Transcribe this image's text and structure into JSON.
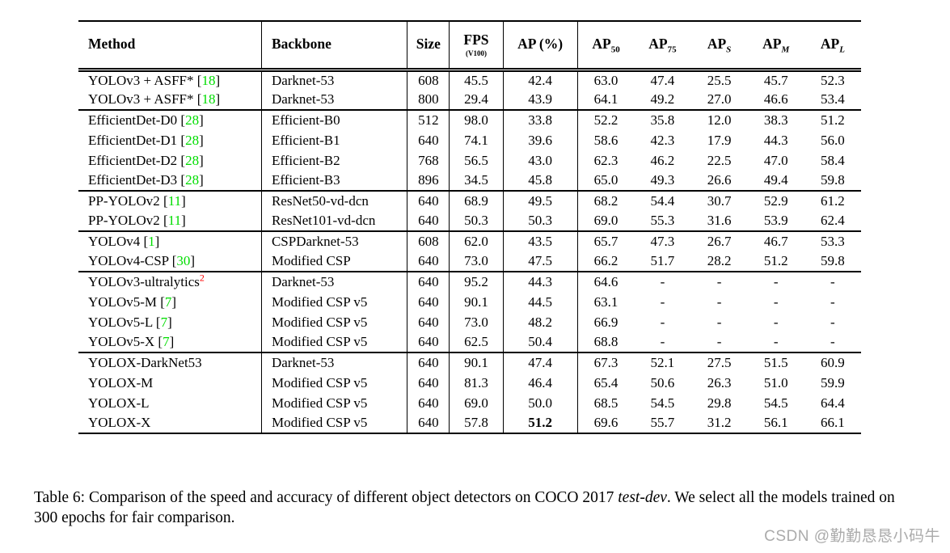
{
  "colors": {
    "citation_green": "#00dd00",
    "footnote_red": "#ff0000",
    "watermark_gray": "#ababab",
    "rule_black": "#000000",
    "background": "#ffffff"
  },
  "table": {
    "columns": [
      {
        "key": "method",
        "label": "Method",
        "align": "left"
      },
      {
        "key": "backbone",
        "label": "Backbone",
        "align": "left"
      },
      {
        "key": "size",
        "label": "Size"
      },
      {
        "key": "fps",
        "label": "FPS",
        "sub_note": "(V100)"
      },
      {
        "key": "ap",
        "label": "AP (%)"
      },
      {
        "key": "ap50",
        "label": "AP",
        "sub": "50"
      },
      {
        "key": "ap75",
        "label": "AP",
        "sub": "75"
      },
      {
        "key": "aps",
        "label": "AP",
        "sub": "S",
        "sub_italic": true
      },
      {
        "key": "apm",
        "label": "AP",
        "sub": "M",
        "sub_italic": true
      },
      {
        "key": "apl",
        "label": "AP",
        "sub": "L",
        "sub_italic": true
      }
    ],
    "groups": [
      {
        "rows": [
          {
            "method": "YOLOv3 + ASFF*",
            "cite": "18",
            "backbone": "Darknet-53",
            "size": "608",
            "fps": "45.5",
            "ap": "42.4",
            "ap50": "63.0",
            "ap75": "47.4",
            "aps": "25.5",
            "apm": "45.7",
            "apl": "52.3"
          },
          {
            "method": "YOLOv3 + ASFF*",
            "cite": "18",
            "backbone": "Darknet-53",
            "size": "800",
            "fps": "29.4",
            "ap": "43.9",
            "ap50": "64.1",
            "ap75": "49.2",
            "aps": "27.0",
            "apm": "46.6",
            "apl": "53.4"
          }
        ]
      },
      {
        "rows": [
          {
            "method": "EfficientDet-D0",
            "cite": "28",
            "backbone": "Efficient-B0",
            "size": "512",
            "fps": "98.0",
            "ap": "33.8",
            "ap50": "52.2",
            "ap75": "35.8",
            "aps": "12.0",
            "apm": "38.3",
            "apl": "51.2"
          },
          {
            "method": "EfficientDet-D1",
            "cite": "28",
            "backbone": "Efficient-B1",
            "size": "640",
            "fps": "74.1",
            "ap": "39.6",
            "ap50": "58.6",
            "ap75": "42.3",
            "aps": "17.9",
            "apm": "44.3",
            "apl": "56.0"
          },
          {
            "method": "EfficientDet-D2",
            "cite": "28",
            "backbone": "Efficient-B2",
            "size": "768",
            "fps": "56.5",
            "ap": "43.0",
            "ap50": "62.3",
            "ap75": "46.2",
            "aps": "22.5",
            "apm": "47.0",
            "apl": "58.4"
          },
          {
            "method": "EfficientDet-D3",
            "cite": "28",
            "backbone": "Efficient-B3",
            "size": "896",
            "fps": "34.5",
            "ap": "45.8",
            "ap50": "65.0",
            "ap75": "49.3",
            "aps": "26.6",
            "apm": "49.4",
            "apl": "59.8"
          }
        ]
      },
      {
        "rows": [
          {
            "method": "PP-YOLOv2",
            "cite": "11",
            "backbone": "ResNet50-vd-dcn",
            "size": "640",
            "fps": "68.9",
            "ap": "49.5",
            "ap50": "68.2",
            "ap75": "54.4",
            "aps": "30.7",
            "apm": "52.9",
            "apl": "61.2"
          },
          {
            "method": "PP-YOLOv2",
            "cite": "11",
            "backbone": "ResNet101-vd-dcn",
            "size": "640",
            "fps": "50.3",
            "ap": "50.3",
            "ap50": "69.0",
            "ap75": "55.3",
            "aps": "31.6",
            "apm": "53.9",
            "apl": "62.4"
          }
        ]
      },
      {
        "rows": [
          {
            "method": "YOLOv4",
            "cite": "1",
            "backbone": "CSPDarknet-53",
            "size": "608",
            "fps": "62.0",
            "ap": "43.5",
            "ap50": "65.7",
            "ap75": "47.3",
            "aps": "26.7",
            "apm": "46.7",
            "apl": "53.3"
          },
          {
            "method": "YOLOv4-CSP",
            "cite": "30",
            "backbone": "Modified CSP",
            "size": "640",
            "fps": "73.0",
            "ap": "47.5",
            "ap50": "66.2",
            "ap75": "51.7",
            "aps": "28.2",
            "apm": "51.2",
            "apl": "59.8"
          }
        ]
      },
      {
        "rows": [
          {
            "method": "YOLOv3-ultralytics",
            "sup": "2",
            "backbone": "Darknet-53",
            "size": "640",
            "fps": "95.2",
            "ap": "44.3",
            "ap50": "64.6",
            "ap75": "-",
            "aps": "-",
            "apm": "-",
            "apl": "-"
          },
          {
            "method": "YOLOv5-M",
            "cite": "7",
            "backbone": "Modified CSP v5",
            "size": "640",
            "fps": "90.1",
            "ap": "44.5",
            "ap50": "63.1",
            "ap75": "-",
            "aps": "-",
            "apm": "-",
            "apl": "-"
          },
          {
            "method": "YOLOv5-L",
            "cite": "7",
            "backbone": "Modified CSP v5",
            "size": "640",
            "fps": "73.0",
            "ap": "48.2",
            "ap50": "66.9",
            "ap75": "-",
            "aps": "-",
            "apm": "-",
            "apl": "-"
          },
          {
            "method": "YOLOv5-X",
            "cite": "7",
            "backbone": "Modified CSP v5",
            "size": "640",
            "fps": "62.5",
            "ap": "50.4",
            "ap50": "68.8",
            "ap75": "-",
            "aps": "-",
            "apm": "-",
            "apl": "-"
          }
        ]
      },
      {
        "rows": [
          {
            "method": "YOLOX-DarkNet53",
            "backbone": "Darknet-53",
            "size": "640",
            "fps": "90.1",
            "ap": "47.4",
            "ap50": "67.3",
            "ap75": "52.1",
            "aps": "27.5",
            "apm": "51.5",
            "apl": "60.9"
          },
          {
            "method": "YOLOX-M",
            "backbone": "Modified CSP v5",
            "size": "640",
            "fps": "81.3",
            "ap": "46.4",
            "ap50": "65.4",
            "ap75": "50.6",
            "aps": "26.3",
            "apm": "51.0",
            "apl": "59.9"
          },
          {
            "method": "YOLOX-L",
            "backbone": "Modified CSP v5",
            "size": "640",
            "fps": "69.0",
            "ap": "50.0",
            "ap50": "68.5",
            "ap75": "54.5",
            "aps": "29.8",
            "apm": "54.5",
            "apl": "64.4"
          },
          {
            "method": "YOLOX-X",
            "backbone": "Modified CSP v5",
            "size": "640",
            "fps": "57.8",
            "ap": "51.2",
            "ap_bold": true,
            "ap50": "69.6",
            "ap75": "55.7",
            "aps": "31.2",
            "apm": "56.1",
            "apl": "66.1"
          }
        ]
      }
    ]
  },
  "caption": {
    "prefix": "Table 6: Comparison of the speed and accuracy of different object detectors on COCO 2017 ",
    "emphasis": "test-dev",
    "suffix": ". We select all the models trained on 300 epochs for fair comparison."
  },
  "watermark": "CSDN @勤勤恳恳小码牛"
}
